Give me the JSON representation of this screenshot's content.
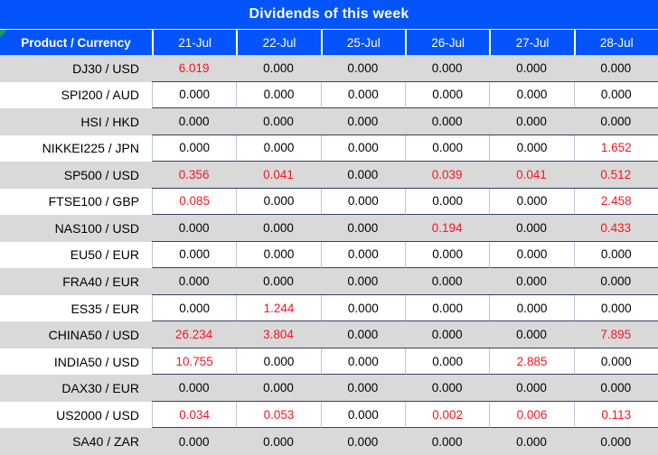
{
  "title": "Dividends of this week",
  "table": {
    "corner_header": "Product / Currency",
    "date_headers": [
      "21-Jul",
      "22-Jul",
      "25-Jul",
      "26-Jul",
      "27-Jul",
      "28-Jul"
    ],
    "rows": [
      {
        "product": "DJ30 / USD",
        "values": [
          "6.019",
          "0.000",
          "0.000",
          "0.000",
          "0.000",
          "0.000"
        ],
        "red": [
          true,
          false,
          false,
          false,
          false,
          false
        ]
      },
      {
        "product": "SPI200 / AUD",
        "values": [
          "0.000",
          "0.000",
          "0.000",
          "0.000",
          "0.000",
          "0.000"
        ],
        "red": [
          false,
          false,
          false,
          false,
          false,
          false
        ]
      },
      {
        "product": "HSI / HKD",
        "values": [
          "0.000",
          "0.000",
          "0.000",
          "0.000",
          "0.000",
          "0.000"
        ],
        "red": [
          false,
          false,
          false,
          false,
          false,
          false
        ]
      },
      {
        "product": "NIKKEI225 / JPN",
        "values": [
          "0.000",
          "0.000",
          "0.000",
          "0.000",
          "0.000",
          "1.652"
        ],
        "red": [
          false,
          false,
          false,
          false,
          false,
          true
        ]
      },
      {
        "product": "SP500 / USD",
        "values": [
          "0.356",
          "0.041",
          "0.000",
          "0.039",
          "0.041",
          "0.512"
        ],
        "red": [
          true,
          true,
          false,
          true,
          true,
          true
        ]
      },
      {
        "product": "FTSE100 / GBP",
        "values": [
          "0.085",
          "0.000",
          "0.000",
          "0.000",
          "0.000",
          "2.458"
        ],
        "red": [
          true,
          false,
          false,
          false,
          false,
          true
        ]
      },
      {
        "product": "NAS100 / USD",
        "values": [
          "0.000",
          "0.000",
          "0.000",
          "0.194",
          "0.000",
          "0.433"
        ],
        "red": [
          false,
          false,
          false,
          true,
          false,
          true
        ]
      },
      {
        "product": "EU50 / EUR",
        "values": [
          "0.000",
          "0.000",
          "0.000",
          "0.000",
          "0.000",
          "0.000"
        ],
        "red": [
          false,
          false,
          false,
          false,
          false,
          false
        ]
      },
      {
        "product": "FRA40 / EUR",
        "values": [
          "0.000",
          "0.000",
          "0.000",
          "0.000",
          "0.000",
          "0.000"
        ],
        "red": [
          false,
          false,
          false,
          false,
          false,
          false
        ]
      },
      {
        "product": "ES35 / EUR",
        "values": [
          "0.000",
          "1.244",
          "0.000",
          "0.000",
          "0.000",
          "0.000"
        ],
        "red": [
          false,
          true,
          false,
          false,
          false,
          false
        ]
      },
      {
        "product": "CHINA50 / USD",
        "values": [
          "26.234",
          "3.804",
          "0.000",
          "0.000",
          "0.000",
          "7.895"
        ],
        "red": [
          true,
          true,
          false,
          false,
          false,
          true
        ]
      },
      {
        "product": "INDIA50 / USD",
        "values": [
          "10.755",
          "0.000",
          "0.000",
          "0.000",
          "2.885",
          "0.000"
        ],
        "red": [
          true,
          false,
          false,
          false,
          true,
          false
        ]
      },
      {
        "product": "DAX30 / EUR",
        "values": [
          "0.000",
          "0.000",
          "0.000",
          "0.000",
          "0.000",
          "0.000"
        ],
        "red": [
          false,
          false,
          false,
          false,
          false,
          false
        ]
      },
      {
        "product": "US2000 / USD",
        "values": [
          "0.034",
          "0.053",
          "0.000",
          "0.002",
          "0.006",
          "0.113"
        ],
        "red": [
          true,
          true,
          false,
          true,
          true,
          true
        ]
      },
      {
        "product": "SA40 / ZAR",
        "values": [
          "0.000",
          "0.000",
          "0.000",
          "0.000",
          "0.000",
          "0.000"
        ],
        "red": [
          false,
          false,
          false,
          false,
          false,
          false
        ]
      }
    ]
  },
  "icons": {
    "corner_marker": "green-corner-triangle"
  },
  "colors": {
    "header_blue": "#0454fb",
    "row_gray": "#d9d9d9",
    "row_white": "#ffffff",
    "value_red": "#fa1420",
    "text_black": "#000000",
    "column_separator": "#b8c7da",
    "row_separator": "#33415f",
    "corner_triangle_green": "#18a04a"
  }
}
